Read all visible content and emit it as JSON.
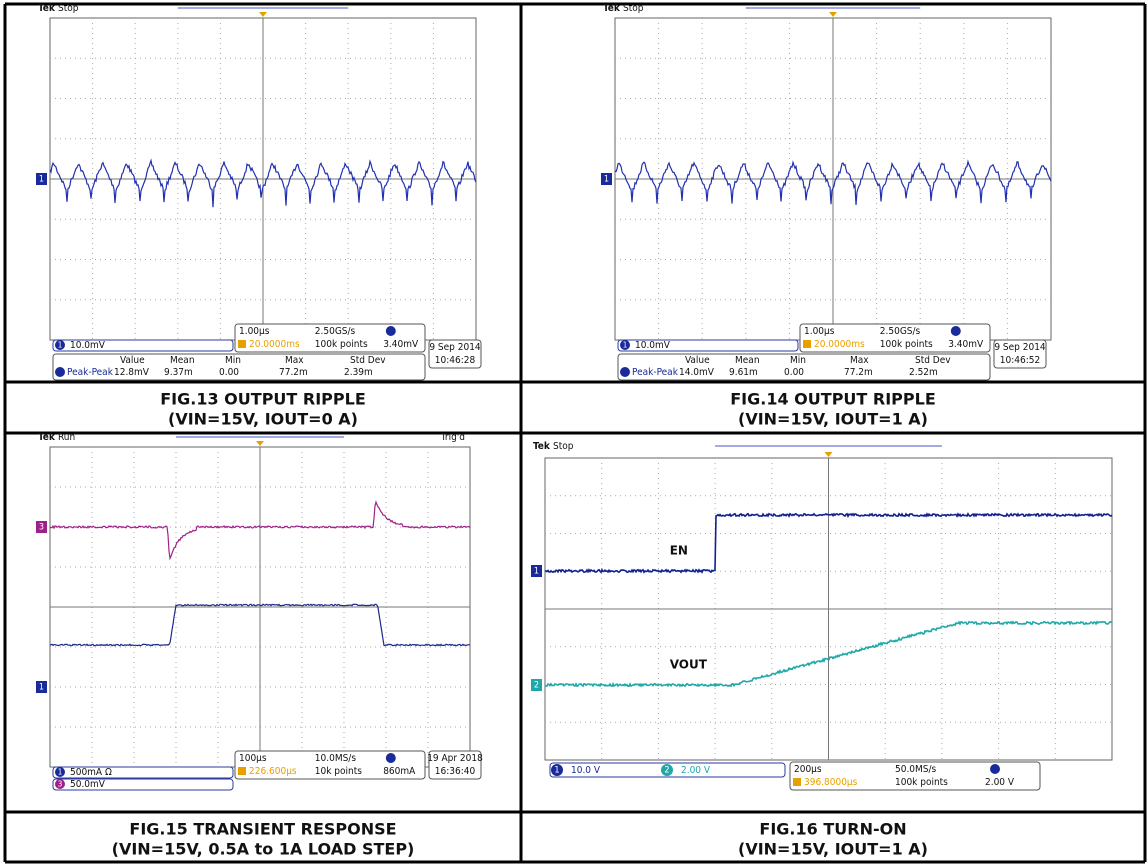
{
  "figures": [
    {
      "brand": "Tek",
      "state": "Stop",
      "channels": [
        {
          "number": "1",
          "scale": "10.0mV"
        }
      ],
      "timebase": "1.00µs",
      "sample_rate": "2.50GS/s",
      "trigger_position": "20.0000ms",
      "record_length": "100k points",
      "trigger_level": "3.40mV",
      "date": "9 Sep 2014",
      "time": "10:46:28",
      "measurement": {
        "columns": [
          "Value",
          "Mean",
          "Min",
          "Max",
          "Std Dev"
        ],
        "label": "Peak-Peak",
        "values": [
          "12.8mV",
          "9.37m",
          "0.00",
          "77.2m",
          "2.39m"
        ]
      },
      "caption": [
        "FIG.13 OUTPUT RIPPLE",
        "(VIN=15V, IOUT=0 A)"
      ]
    },
    {
      "brand": "Tek",
      "state": "Stop",
      "channels": [
        {
          "number": "1",
          "scale": "10.0mV"
        }
      ],
      "timebase": "1.00µs",
      "sample_rate": "2.50GS/s",
      "trigger_position": "20.0000ms",
      "record_length": "100k points",
      "trigger_level": "3.40mV",
      "date": "9 Sep 2014",
      "time": "10:46:52",
      "measurement": {
        "columns": [
          "Value",
          "Mean",
          "Min",
          "Max",
          "Std Dev"
        ],
        "label": "Peak-Peak",
        "values": [
          "14.0mV",
          "9.61m",
          "0.00",
          "77.2m",
          "2.52m"
        ]
      },
      "caption": [
        "FIG.14 OUTPUT RIPPLE",
        "(VIN=15V, IOUT=1 A)"
      ]
    },
    {
      "brand": "Tek",
      "state": "Run",
      "trigger_state": "Trig'd",
      "channels": [
        {
          "number": "1",
          "scale": "500mA Ω"
        },
        {
          "number": "3",
          "scale": "50.0mV"
        }
      ],
      "timebase": "100µs",
      "sample_rate": "10.0MS/s",
      "trigger_position": "226.600µs",
      "record_length": "10k points",
      "trigger_level": "860mA",
      "date": "19 Apr 2018",
      "time": "16:36:40",
      "caption": [
        "FIG.15 TRANSIENT RESPONSE",
        "(VIN=15V, 0.5A to 1A LOAD STEP)"
      ]
    },
    {
      "brand": "Tek",
      "state": "Stop",
      "channels": [
        {
          "number": "1",
          "scale": "10.0 V"
        },
        {
          "number": "2",
          "scale": "2.00 V"
        }
      ],
      "timebase": "200µs",
      "sample_rate": "50.0MS/s",
      "trigger_position": "396.8000µs",
      "record_length": "100k points",
      "trigger_level": "2.00 V",
      "annotations": [
        "EN",
        "VOUT"
      ],
      "caption": [
        "FIG.16 TURN-ON",
        "(VIN=15V, IOUT=1 A)"
      ]
    }
  ]
}
